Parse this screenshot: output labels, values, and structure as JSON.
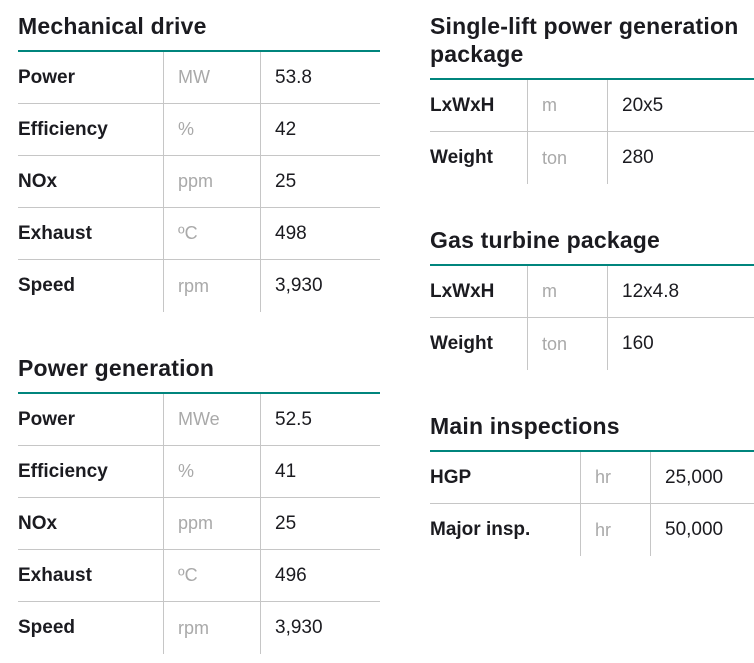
{
  "theme": {
    "accent_color": "#00857D",
    "line_color": "#c6c6c6",
    "unit_color": "#a9a9a9",
    "text_color": "#1b1b20"
  },
  "tables": [
    {
      "title": "Mechanical drive",
      "rows": [
        {
          "label": "Power",
          "unit": "MW",
          "value": "53.8"
        },
        {
          "label": "Efficiency",
          "unit": "%",
          "value": "42"
        },
        {
          "label": "NOx",
          "unit": "ppm",
          "value": "25"
        },
        {
          "label": "Exhaust",
          "unit": "ºC",
          "value": "498"
        },
        {
          "label": "Speed",
          "unit": "rpm",
          "value": "3,930"
        }
      ]
    },
    {
      "title": "Power generation",
      "rows": [
        {
          "label": "Power",
          "unit": "MWe",
          "value": "52.5"
        },
        {
          "label": "Efficiency",
          "unit": "%",
          "value": "41"
        },
        {
          "label": "NOx",
          "unit": "ppm",
          "value": "25"
        },
        {
          "label": "Exhaust",
          "unit": "ºC",
          "value": "496"
        },
        {
          "label": "Speed",
          "unit": "rpm",
          "value": "3,930"
        }
      ]
    },
    {
      "title": "Single-lift power generation package",
      "rows": [
        {
          "label": "LxWxH",
          "unit": "m",
          "value": "20x5"
        },
        {
          "label": "Weight",
          "unit": "ton",
          "value": "280"
        }
      ]
    },
    {
      "title": "Gas turbine package",
      "rows": [
        {
          "label": "LxWxH",
          "unit": "m",
          "value": "12x4.8"
        },
        {
          "label": "Weight",
          "unit": "ton",
          "value": "160"
        }
      ]
    },
    {
      "title": "Main inspections",
      "rows": [
        {
          "label": "HGP",
          "unit": "hr",
          "value": "25,000"
        },
        {
          "label": "Major insp.",
          "unit": "hr",
          "value": "50,000"
        }
      ]
    }
  ]
}
